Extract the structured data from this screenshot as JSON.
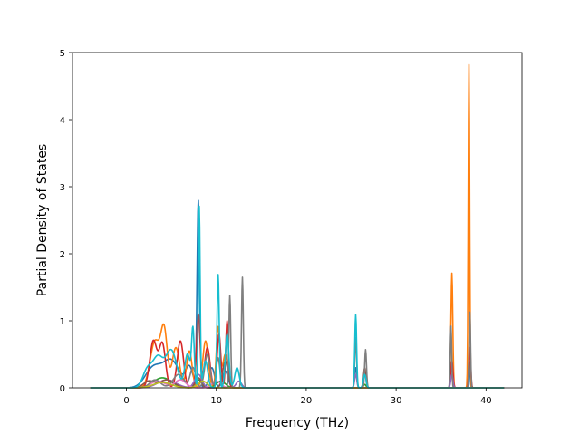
{
  "chart_data": {
    "type": "line",
    "title": "",
    "xlabel": "Frequency (THz)",
    "ylabel": "Partial Density of States",
    "xlim": [
      -6,
      44
    ],
    "ylim": [
      0,
      5
    ],
    "xticks": [
      0,
      10,
      20,
      30,
      40
    ],
    "yticks": [
      0,
      1,
      2,
      3,
      4,
      5
    ],
    "xtick_labels": [
      "0",
      "10",
      "20",
      "30",
      "40"
    ],
    "ytick_labels": [
      "0",
      "1",
      "2",
      "3",
      "4",
      "5"
    ],
    "x_range_plotted": [
      -4,
      42
    ],
    "grid": false,
    "legend": "none",
    "colors": [
      "#1f77b4",
      "#ff7f0e",
      "#2ca02c",
      "#d62728",
      "#9467bd",
      "#8c564b",
      "#e377c2",
      "#7f7f7f",
      "#bcbd22",
      "#17becf"
    ],
    "series": [
      {
        "color": "#1f77b4",
        "peaks": [
          [
            3.0,
            0.3,
            0.9
          ],
          [
            5.0,
            0.4,
            0.9
          ],
          [
            7.0,
            0.3,
            0.4
          ],
          [
            8.0,
            2.78,
            0.14
          ],
          [
            9.5,
            0.3,
            0.3
          ],
          [
            11.0,
            0.25,
            0.3
          ],
          [
            25.5,
            0.3,
            0.12
          ],
          [
            36.2,
            0.35,
            0.12
          ],
          [
            38.1,
            0.4,
            0.1
          ]
        ]
      },
      {
        "color": "#ff7f0e",
        "peaks": [
          [
            3.2,
            0.7,
            0.55
          ],
          [
            4.2,
            0.8,
            0.35
          ],
          [
            5.5,
            0.6,
            0.4
          ],
          [
            7.0,
            0.55,
            0.3
          ],
          [
            8.8,
            0.7,
            0.3
          ],
          [
            10.2,
            0.9,
            0.2
          ],
          [
            11.0,
            0.5,
            0.3
          ],
          [
            36.2,
            1.71,
            0.1
          ],
          [
            38.1,
            4.82,
            0.08
          ]
        ]
      },
      {
        "color": "#2ca02c",
        "peaks": [
          [
            4.0,
            0.15,
            1.0
          ],
          [
            8.0,
            0.12,
            0.4
          ],
          [
            10.5,
            0.1,
            0.5
          ],
          [
            26.5,
            0.05,
            0.15
          ]
        ]
      },
      {
        "color": "#d62728",
        "peaks": [
          [
            3.0,
            0.7,
            0.4
          ],
          [
            4.0,
            0.65,
            0.35
          ],
          [
            6.0,
            0.7,
            0.35
          ],
          [
            8.0,
            1.1,
            0.2
          ],
          [
            9.0,
            0.6,
            0.3
          ],
          [
            10.3,
            0.8,
            0.2
          ],
          [
            11.2,
            1.0,
            0.15
          ],
          [
            36.2,
            0.4,
            0.12
          ],
          [
            38.2,
            0.6,
            0.1
          ]
        ]
      },
      {
        "color": "#9467bd",
        "peaks": [
          [
            4.5,
            0.12,
            1.0
          ],
          [
            8.0,
            0.2,
            0.4
          ],
          [
            12.5,
            0.1,
            0.3
          ],
          [
            25.5,
            0.2,
            0.12
          ],
          [
            36.2,
            0.2,
            0.12
          ]
        ]
      },
      {
        "color": "#8c564b",
        "peaks": [
          [
            2.5,
            0.1,
            0.6
          ],
          [
            4.5,
            0.12,
            0.8
          ],
          [
            8.0,
            0.15,
            0.3
          ],
          [
            11.0,
            0.4,
            0.3
          ],
          [
            26.5,
            0.3,
            0.12
          ]
        ]
      },
      {
        "color": "#e377c2",
        "peaks": [
          [
            3.5,
            0.1,
            0.8
          ],
          [
            6.0,
            0.12,
            0.6
          ],
          [
            10.0,
            0.1,
            0.5
          ]
        ]
      },
      {
        "color": "#7f7f7f",
        "peaks": [
          [
            3.2,
            0.12,
            0.6
          ],
          [
            5.8,
            0.2,
            0.6
          ],
          [
            7.4,
            0.3,
            0.3
          ],
          [
            9.0,
            0.5,
            0.3
          ],
          [
            10.2,
            0.45,
            0.2
          ],
          [
            11.5,
            1.38,
            0.1
          ],
          [
            12.9,
            1.65,
            0.1
          ],
          [
            25.5,
            0.75,
            0.1
          ],
          [
            26.6,
            0.57,
            0.1
          ],
          [
            36.1,
            0.92,
            0.08
          ],
          [
            38.2,
            1.13,
            0.08
          ]
        ]
      },
      {
        "color": "#bcbd22",
        "peaks": [
          [
            4.0,
            0.08,
            1.0
          ],
          [
            8.5,
            0.1,
            0.5
          ]
        ]
      },
      {
        "color": "#17becf",
        "peaks": [
          [
            2.3,
            0.25,
            0.5
          ],
          [
            3.5,
            0.45,
            0.6
          ],
          [
            5.0,
            0.55,
            0.6
          ],
          [
            6.8,
            0.5,
            0.3
          ],
          [
            7.4,
            0.85,
            0.15
          ],
          [
            8.1,
            2.7,
            0.1
          ],
          [
            8.8,
            0.4,
            0.25
          ],
          [
            10.2,
            1.69,
            0.12
          ],
          [
            11.2,
            0.8,
            0.2
          ],
          [
            12.3,
            0.3,
            0.25
          ],
          [
            25.5,
            1.09,
            0.1
          ],
          [
            26.5,
            0.2,
            0.15
          ]
        ]
      }
    ]
  }
}
